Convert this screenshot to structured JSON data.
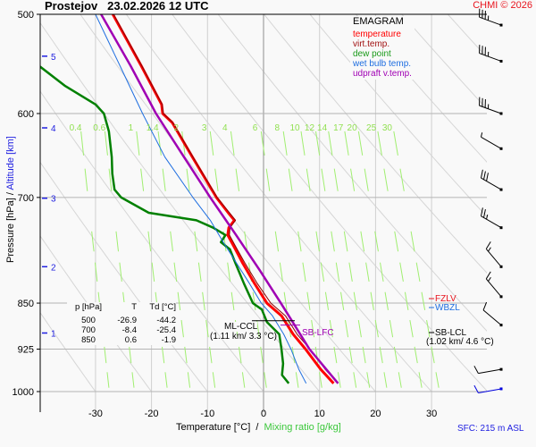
{
  "header": {
    "station": "Prostejov",
    "datetime": "23.02.2026 12 UTC",
    "copyright": "CHMI © 2026"
  },
  "colors": {
    "temperature": "#ff0000",
    "virt_temp": "#8b0000",
    "dew_point": "#008000",
    "wet_bulb": "#1e6ee0",
    "updraft": "#a000b4",
    "mixing_ratio": "#90ee50",
    "altitude": "#1e1ee0"
  },
  "legend": {
    "title": "EMAGRAM",
    "items": [
      {
        "label": "temperature",
        "color": "#ff0000"
      },
      {
        "label": "virt.temp.",
        "color": "#a01010"
      },
      {
        "label": "dew point",
        "color": "#1a9a1a"
      },
      {
        "label": "wet bulb temp.",
        "color": "#1e6ee0"
      },
      {
        "label": "udpraft v.temp.",
        "color": "#a000b4"
      }
    ]
  },
  "table": {
    "headers": [
      "p [hPa]",
      "T",
      "Td [°C]"
    ],
    "rows": [
      [
        "500",
        "-26.9",
        "-44.2"
      ],
      [
        "700",
        "-8.4",
        "-25.4"
      ],
      [
        "850",
        "0.6",
        "-1.9"
      ]
    ]
  },
  "annotations": {
    "ml_ccl": "ML-CCL",
    "ml_ccl_val": "(1.11 km/ 3.3 °C)",
    "sb_lfc": "SB-LFC",
    "fzlv": "FZLV",
    "wbzl": "WBZL",
    "sb_lcl": "SB-LCL",
    "sb_lcl_val": "(1.02 km/ 4.6 °C)"
  },
  "axes": {
    "ylabel_pressure": "Pressure [hPa]",
    "ylabel_sep": " / ",
    "ylabel_altitude": "Altitude [km]",
    "xlabel_temp": "Temperature [°C]",
    "xlabel_sep": "  /  ",
    "xlabel_mix": "Mixing ratio [g/kg]",
    "sfc": "SFC: 215 m ASL"
  },
  "chart_data": {
    "type": "line",
    "title": "Prostejov 23.02.2026 12 UTC — EMAGRAM",
    "xlabel": "Temperature [°C] / Mixing ratio [g/kg]",
    "ylabel": "Pressure [hPa] / Altitude [km]",
    "xlim": [
      -40,
      40
    ],
    "ylim": [
      1000,
      500
    ],
    "x_ticks": [
      -30,
      -20,
      -10,
      0,
      10,
      20,
      30
    ],
    "p_ticks": [
      500,
      600,
      700,
      850,
      925,
      1000
    ],
    "altitude_ticks": [
      1,
      2,
      3,
      4,
      5
    ],
    "altitude_pressures": [
      898,
      795,
      701,
      616,
      540
    ],
    "mixing_ratio_labels": [
      "0.4",
      "0.6",
      "1",
      "1.4",
      "2",
      "3",
      "4",
      "6",
      "8",
      "10",
      "12",
      "14",
      "17",
      "20",
      "25",
      "30"
    ],
    "mixing_ratio_values": [
      0.4,
      0.6,
      1,
      1.4,
      2,
      3,
      4,
      6,
      8,
      10,
      12,
      14,
      17,
      20,
      25,
      30
    ],
    "series": [
      {
        "name": "temperature",
        "p": [
          985,
          960,
          925,
          900,
          870,
          850,
          820,
          790,
          770,
          750,
          740,
          730,
          720,
          700,
          650,
          610,
          600,
          590,
          550,
          500
        ],
        "t": [
          12.5,
          10.2,
          7.5,
          5.3,
          3.2,
          0.6,
          -1.6,
          -3.7,
          -5.0,
          -6.4,
          -6.2,
          -5.2,
          -6.3,
          -8.4,
          -12.7,
          -16.3,
          -18.0,
          -18.2,
          -21.8,
          -26.9
        ]
      },
      {
        "name": "virt.temp.",
        "p": [
          985,
          960,
          925,
          900,
          870,
          850,
          820,
          790,
          770,
          750,
          740,
          730,
          720,
          700,
          650,
          610,
          600,
          590,
          550,
          500
        ],
        "t": [
          13.3,
          11.0,
          8.3,
          6.0,
          3.9,
          1.3,
          -1.1,
          -3.3,
          -4.7,
          -6.1,
          -6.0,
          -5.0,
          -6.1,
          -8.3,
          -12.6,
          -16.2,
          -17.9,
          -18.1,
          -21.7,
          -26.8
        ]
      },
      {
        "name": "dew point",
        "p": [
          985,
          970,
          950,
          925,
          900,
          880,
          860,
          850,
          820,
          790,
          770,
          760,
          750,
          740,
          730,
          720,
          700,
          690,
          670,
          650,
          620,
          600,
          590,
          570,
          550
        ],
        "t": [
          4.5,
          3.3,
          3.5,
          3.2,
          2.8,
          0.6,
          -0.3,
          -1.9,
          -3.5,
          -5.0,
          -6.0,
          -7.6,
          -6.8,
          -9.0,
          -12.0,
          -20.5,
          -25.4,
          -26.6,
          -27.0,
          -27.1,
          -27.6,
          -28.5,
          -30.0,
          -35.5,
          -40.0
        ]
      },
      {
        "name": "wet bulb temp.",
        "p": [
          985,
          960,
          925,
          900,
          870,
          850,
          820,
          790,
          760,
          730,
          700,
          650,
          600,
          550,
          500
        ],
        "t": [
          7.6,
          6.3,
          4.9,
          3.6,
          1.6,
          -0.4,
          -2.5,
          -4.8,
          -7.2,
          -9.5,
          -12.6,
          -17.6,
          -21.6,
          -25.6,
          -30.0
        ]
      },
      {
        "name": "udpraft v.temp.",
        "p": [
          985,
          925,
          880,
          850,
          800,
          750,
          700,
          650,
          600,
          550,
          500
        ],
        "t": [
          13.3,
          8.2,
          5.2,
          3.1,
          -0.7,
          -4.9,
          -9.5,
          -14.2,
          -19.2,
          -23.7,
          -29.0
        ]
      }
    ],
    "wind_barbs": [
      {
        "p": 510,
        "dir_deg": 290,
        "speed_kt": 35
      },
      {
        "p": 545,
        "dir_deg": 290,
        "speed_kt": 35
      },
      {
        "p": 600,
        "dir_deg": 290,
        "speed_kt": 35
      },
      {
        "p": 640,
        "dir_deg": 300,
        "speed_kt": 5
      },
      {
        "p": 690,
        "dir_deg": 300,
        "speed_kt": 30
      },
      {
        "p": 740,
        "dir_deg": 300,
        "speed_kt": 25
      },
      {
        "p": 795,
        "dir_deg": 320,
        "speed_kt": 15
      },
      {
        "p": 840,
        "dir_deg": 320,
        "speed_kt": 15
      },
      {
        "p": 885,
        "dir_deg": 310,
        "speed_kt": 10
      },
      {
        "p": 960,
        "dir_deg": 260,
        "speed_kt": 10
      },
      {
        "p": 995,
        "dir_deg": 260,
        "speed_kt": 10,
        "surface": true
      }
    ],
    "levels": {
      "ml_ccl_p": 878,
      "sb_lfc_p": 885,
      "fzlv_p": 845,
      "wbzl_p": 855,
      "sb_lcl_p": 885
    }
  }
}
